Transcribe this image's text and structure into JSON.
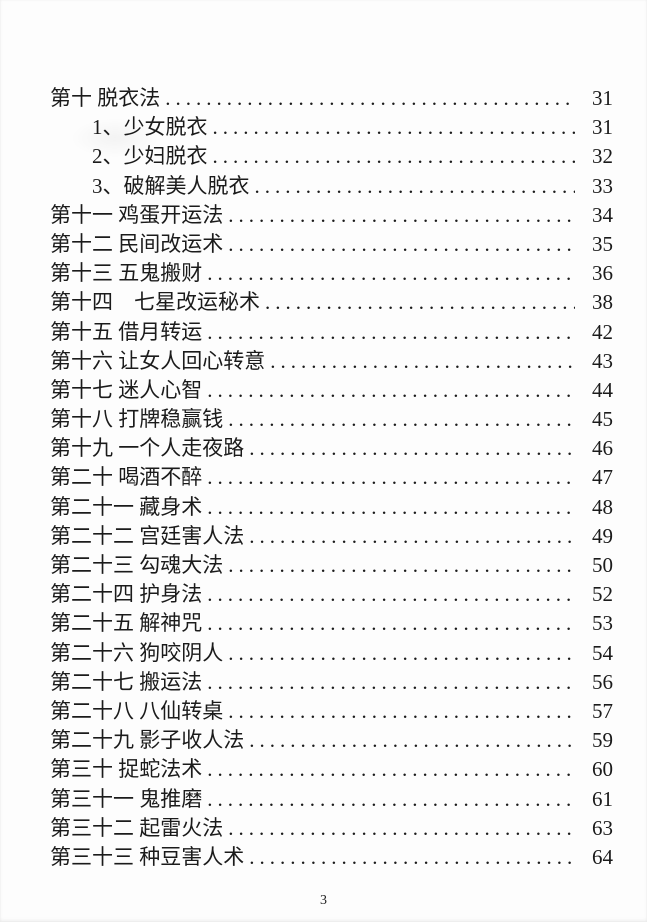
{
  "page": {
    "footer_page_number": "3"
  },
  "colors": {
    "paper": "#fdfdfd",
    "text": "#1b1b1b"
  },
  "toc": {
    "entries": [
      {
        "label": "第十 脱衣法",
        "page": "31",
        "level": 0
      },
      {
        "label": "1、少女脱衣",
        "page": "31",
        "level": 1
      },
      {
        "label": "2、少妇脱衣",
        "page": "32",
        "level": 1
      },
      {
        "label": "3、破解美人脱衣",
        "page": "33",
        "level": 1
      },
      {
        "label": "第十一 鸡蛋开运法",
        "page": "34",
        "level": 0
      },
      {
        "label": "第十二 民间改运术",
        "page": "35",
        "level": 0
      },
      {
        "label": "第十三 五鬼搬财",
        "page": "36",
        "level": 0
      },
      {
        "label": "第十四　七星改运秘术",
        "page": "38",
        "level": 0
      },
      {
        "label": "第十五 借月转运",
        "page": "42",
        "level": 0
      },
      {
        "label": "第十六 让女人回心转意",
        "page": "43",
        "level": 0
      },
      {
        "label": "第十七 迷人心智",
        "page": "44",
        "level": 0
      },
      {
        "label": "第十八 打牌稳赢钱",
        "page": "45",
        "level": 0
      },
      {
        "label": "第十九 一个人走夜路",
        "page": "46",
        "level": 0
      },
      {
        "label": "第二十 喝酒不醉",
        "page": "47",
        "level": 0
      },
      {
        "label": "第二十一 藏身术",
        "page": "48",
        "level": 0
      },
      {
        "label": "第二十二 宫廷害人法",
        "page": "49",
        "level": 0
      },
      {
        "label": "第二十三 勾魂大法",
        "page": "50",
        "level": 0
      },
      {
        "label": "第二十四 护身法",
        "page": "52",
        "level": 0
      },
      {
        "label": "第二十五 解神咒",
        "page": "53",
        "level": 0
      },
      {
        "label": "第二十六 狗咬阴人",
        "page": "54",
        "level": 0
      },
      {
        "label": "第二十七 搬运法",
        "page": "56",
        "level": 0
      },
      {
        "label": "第二十八 八仙转桌",
        "page": "57",
        "level": 0
      },
      {
        "label": "第二十九 影子收人法",
        "page": "59",
        "level": 0
      },
      {
        "label": "第三十 捉蛇法术",
        "page": "60",
        "level": 0
      },
      {
        "label": "第三十一 鬼推磨",
        "page": "61",
        "level": 0
      },
      {
        "label": "第三十二 起雷火法",
        "page": "63",
        "level": 0
      },
      {
        "label": "第三十三 种豆害人术",
        "page": "64",
        "level": 0
      }
    ]
  }
}
